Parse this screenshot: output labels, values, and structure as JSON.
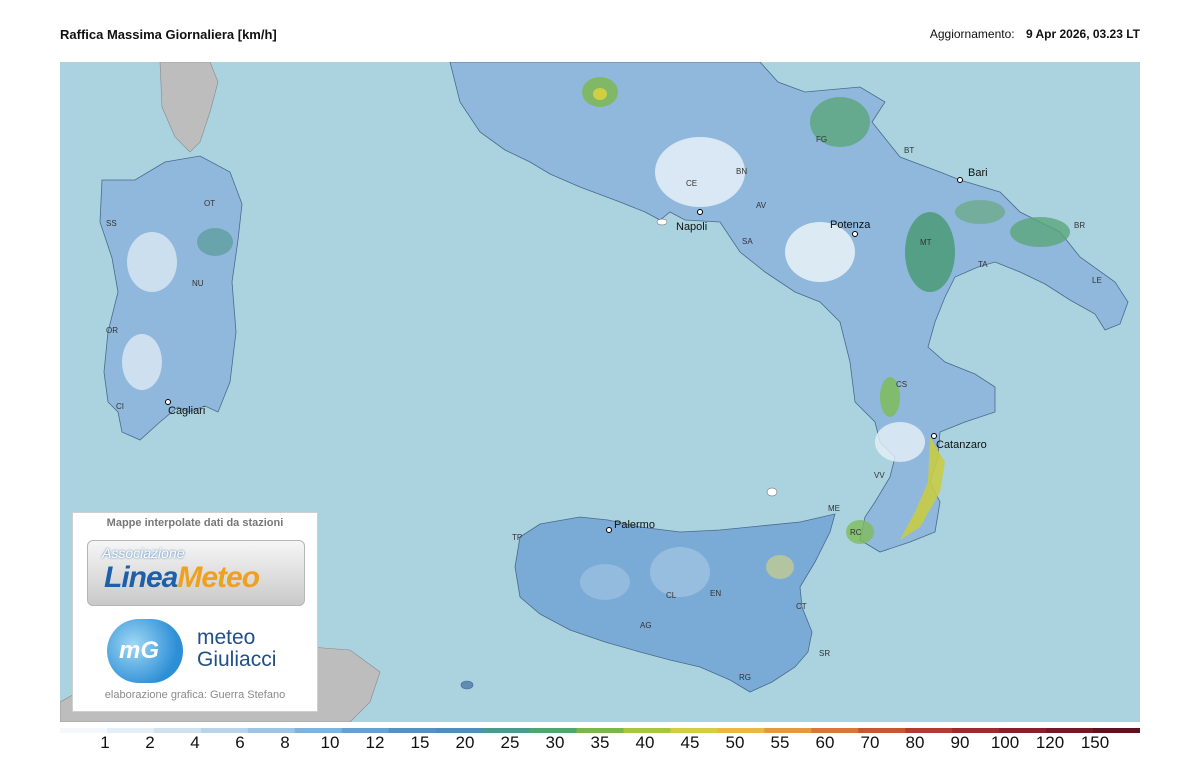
{
  "header": {
    "title": "Raffica Massima Giornaliera [km/h]",
    "updated_label": "Aggiornamento:",
    "updated_value": "9 Apr 2026, 03.23 LT"
  },
  "map": {
    "cities": [
      "Napoli",
      "Potenza",
      "Bari",
      "Catanzaro",
      "Palermo",
      "Cagliari"
    ],
    "provinces": [
      "SS",
      "OT",
      "NU",
      "OR",
      "CI",
      "CE",
      "BN",
      "AV",
      "SA",
      "FG",
      "BT",
      "MT",
      "TA",
      "BR",
      "LE",
      "CS",
      "VV",
      "RC",
      "ME",
      "TP",
      "CL",
      "EN",
      "AG",
      "CT",
      "SR",
      "RG"
    ]
  },
  "logo": {
    "caption": "Mappe interpolate dati da stazioni",
    "association": "Associazione",
    "brand_part1": "Linea",
    "brand_part2": "Meteo",
    "mg": "mG",
    "meteo_word": "meteo",
    "giuliacci_word": "Giuliacci",
    "credit": "elaborazione grafica: Guerra Stefano"
  },
  "legend": {
    "labels": [
      "1",
      "2",
      "4",
      "6",
      "8",
      "10",
      "12",
      "15",
      "20",
      "25",
      "30",
      "35",
      "40",
      "45",
      "50",
      "55",
      "60",
      "70",
      "80",
      "90",
      "100",
      "120",
      "150"
    ],
    "colors": [
      "#f4f8fb",
      "#e4eef6",
      "#d0e2ef",
      "#b8d4ea",
      "#9dc4e3",
      "#81b2da",
      "#6b9fcd",
      "#5c8fc1",
      "#4f8fb5",
      "#4a9a8e",
      "#4fa66d",
      "#79b74c",
      "#a6c73c",
      "#d2cf3e",
      "#e6bb3f",
      "#e49a3c",
      "#d9763a",
      "#c95537",
      "#b53a33",
      "#9f2a2e",
      "#8a1e2a",
      "#741826",
      "#5e1220"
    ]
  }
}
